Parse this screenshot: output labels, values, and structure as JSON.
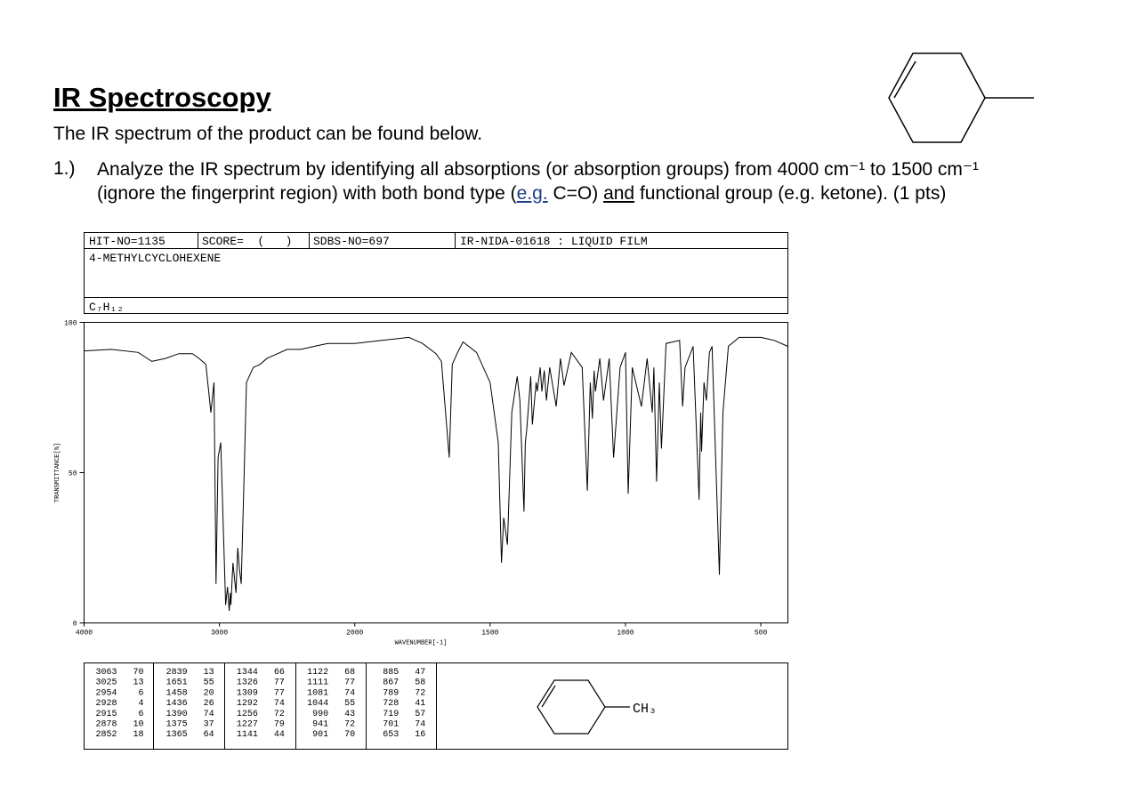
{
  "header": {
    "title": "IR Spectroscopy",
    "intro": "The IR spectrum of the product can be found below."
  },
  "question": {
    "number": "1.)",
    "segments": [
      "Analyze the IR spectrum by identifying all absorptions (or absorption groups) from 4000 cm⁻¹ to 1500 cm⁻¹",
      "(ignore the fingerprint region) with both bond type (",
      "e.g.",
      " C=O) ",
      "and",
      " functional group (e.g. ketone). (1 pts)"
    ]
  },
  "spectrum_header": {
    "hit_no": "HIT-NO=1135",
    "score": "SCORE=  (   )",
    "sdbs_no": "SDBS-NO=697",
    "source": "IR-NIDA-01618 : LIQUID FILM",
    "compound": "4-METHYLCYCLOHEXENE",
    "formula": "C₇H₁₂"
  },
  "chart_data": {
    "type": "line",
    "x_label": "WAVENUMBER[-1]",
    "y_label": "TRANSMITTANCE[%]",
    "color": "#000000",
    "xlim": [
      4000,
      400
    ],
    "x_scale_break": 2000,
    "xticks": [
      4000,
      3000,
      2000,
      1500,
      1000,
      500
    ],
    "ylim": [
      0,
      100
    ],
    "yticks": [
      0,
      50,
      100
    ],
    "x": [
      4000,
      3800,
      3600,
      3500,
      3400,
      3300,
      3200,
      3150,
      3100,
      3063,
      3040,
      3025,
      3010,
      2990,
      2954,
      2940,
      2928,
      2920,
      2915,
      2900,
      2878,
      2865,
      2852,
      2839,
      2820,
      2800,
      2750,
      2700,
      2650,
      2600,
      2500,
      2400,
      2300,
      2200,
      2100,
      2000,
      1900,
      1800,
      1750,
      1700,
      1680,
      1651,
      1640,
      1620,
      1600,
      1550,
      1500,
      1470,
      1458,
      1450,
      1436,
      1420,
      1400,
      1390,
      1375,
      1370,
      1365,
      1350,
      1344,
      1330,
      1326,
      1315,
      1309,
      1300,
      1292,
      1280,
      1256,
      1240,
      1227,
      1200,
      1160,
      1141,
      1130,
      1122,
      1116,
      1111,
      1095,
      1081,
      1060,
      1044,
      1020,
      1000,
      990,
      975,
      941,
      920,
      901,
      895,
      885,
      875,
      867,
      850,
      800,
      789,
      780,
      750,
      728,
      722,
      719,
      710,
      701,
      690,
      680,
      653,
      640,
      620,
      580,
      500,
      450,
      400
    ],
    "values": [
      90.5,
      91,
      90,
      87,
      88,
      89.6,
      89.6,
      88,
      86,
      70,
      80,
      13,
      55,
      60,
      6,
      12,
      4,
      10,
      6,
      20,
      10,
      25,
      18,
      13,
      45,
      80,
      85,
      86,
      88,
      89,
      91,
      91,
      92,
      93,
      93,
      93,
      94,
      95,
      93,
      89.6,
      87,
      55,
      86,
      90,
      93.5,
      90,
      80,
      60,
      20,
      35,
      26,
      70,
      82,
      74,
      37,
      60,
      64,
      82,
      66,
      80,
      77,
      85,
      77,
      84,
      74,
      85,
      72,
      88,
      79,
      90,
      85,
      44,
      80,
      68,
      84,
      77,
      88,
      74,
      88,
      55,
      85,
      90,
      43,
      85,
      72,
      88,
      70,
      85,
      47,
      80,
      58,
      93,
      94,
      72,
      85,
      92,
      41,
      70,
      57,
      80,
      74,
      90,
      92,
      16,
      70,
      92,
      95,
      95,
      94,
      92
    ]
  },
  "peak_table": {
    "columns": [
      [
        [
          3063,
          70
        ],
        [
          3025,
          13
        ],
        [
          2954,
          6
        ],
        [
          2928,
          4
        ],
        [
          2915,
          6
        ],
        [
          2878,
          10
        ],
        [
          2852,
          18
        ]
      ],
      [
        [
          2839,
          13
        ],
        [
          1651,
          55
        ],
        [
          1458,
          20
        ],
        [
          1436,
          26
        ],
        [
          1390,
          74
        ],
        [
          1375,
          37
        ],
        [
          1365,
          64
        ]
      ],
      [
        [
          1344,
          66
        ],
        [
          1326,
          77
        ],
        [
          1309,
          77
        ],
        [
          1292,
          74
        ],
        [
          1256,
          72
        ],
        [
          1227,
          79
        ],
        [
          1141,
          44
        ]
      ],
      [
        [
          1122,
          68
        ],
        [
          1111,
          77
        ],
        [
          1081,
          74
        ],
        [
          1044,
          55
        ],
        [
          990,
          43
        ],
        [
          941,
          72
        ],
        [
          901,
          70
        ]
      ],
      [
        [
          885,
          47
        ],
        [
          867,
          58
        ],
        [
          789,
          72
        ],
        [
          728,
          41
        ],
        [
          719,
          57
        ],
        [
          701,
          74
        ],
        [
          653,
          16
        ]
      ]
    ],
    "structure_label": "CH₃"
  }
}
